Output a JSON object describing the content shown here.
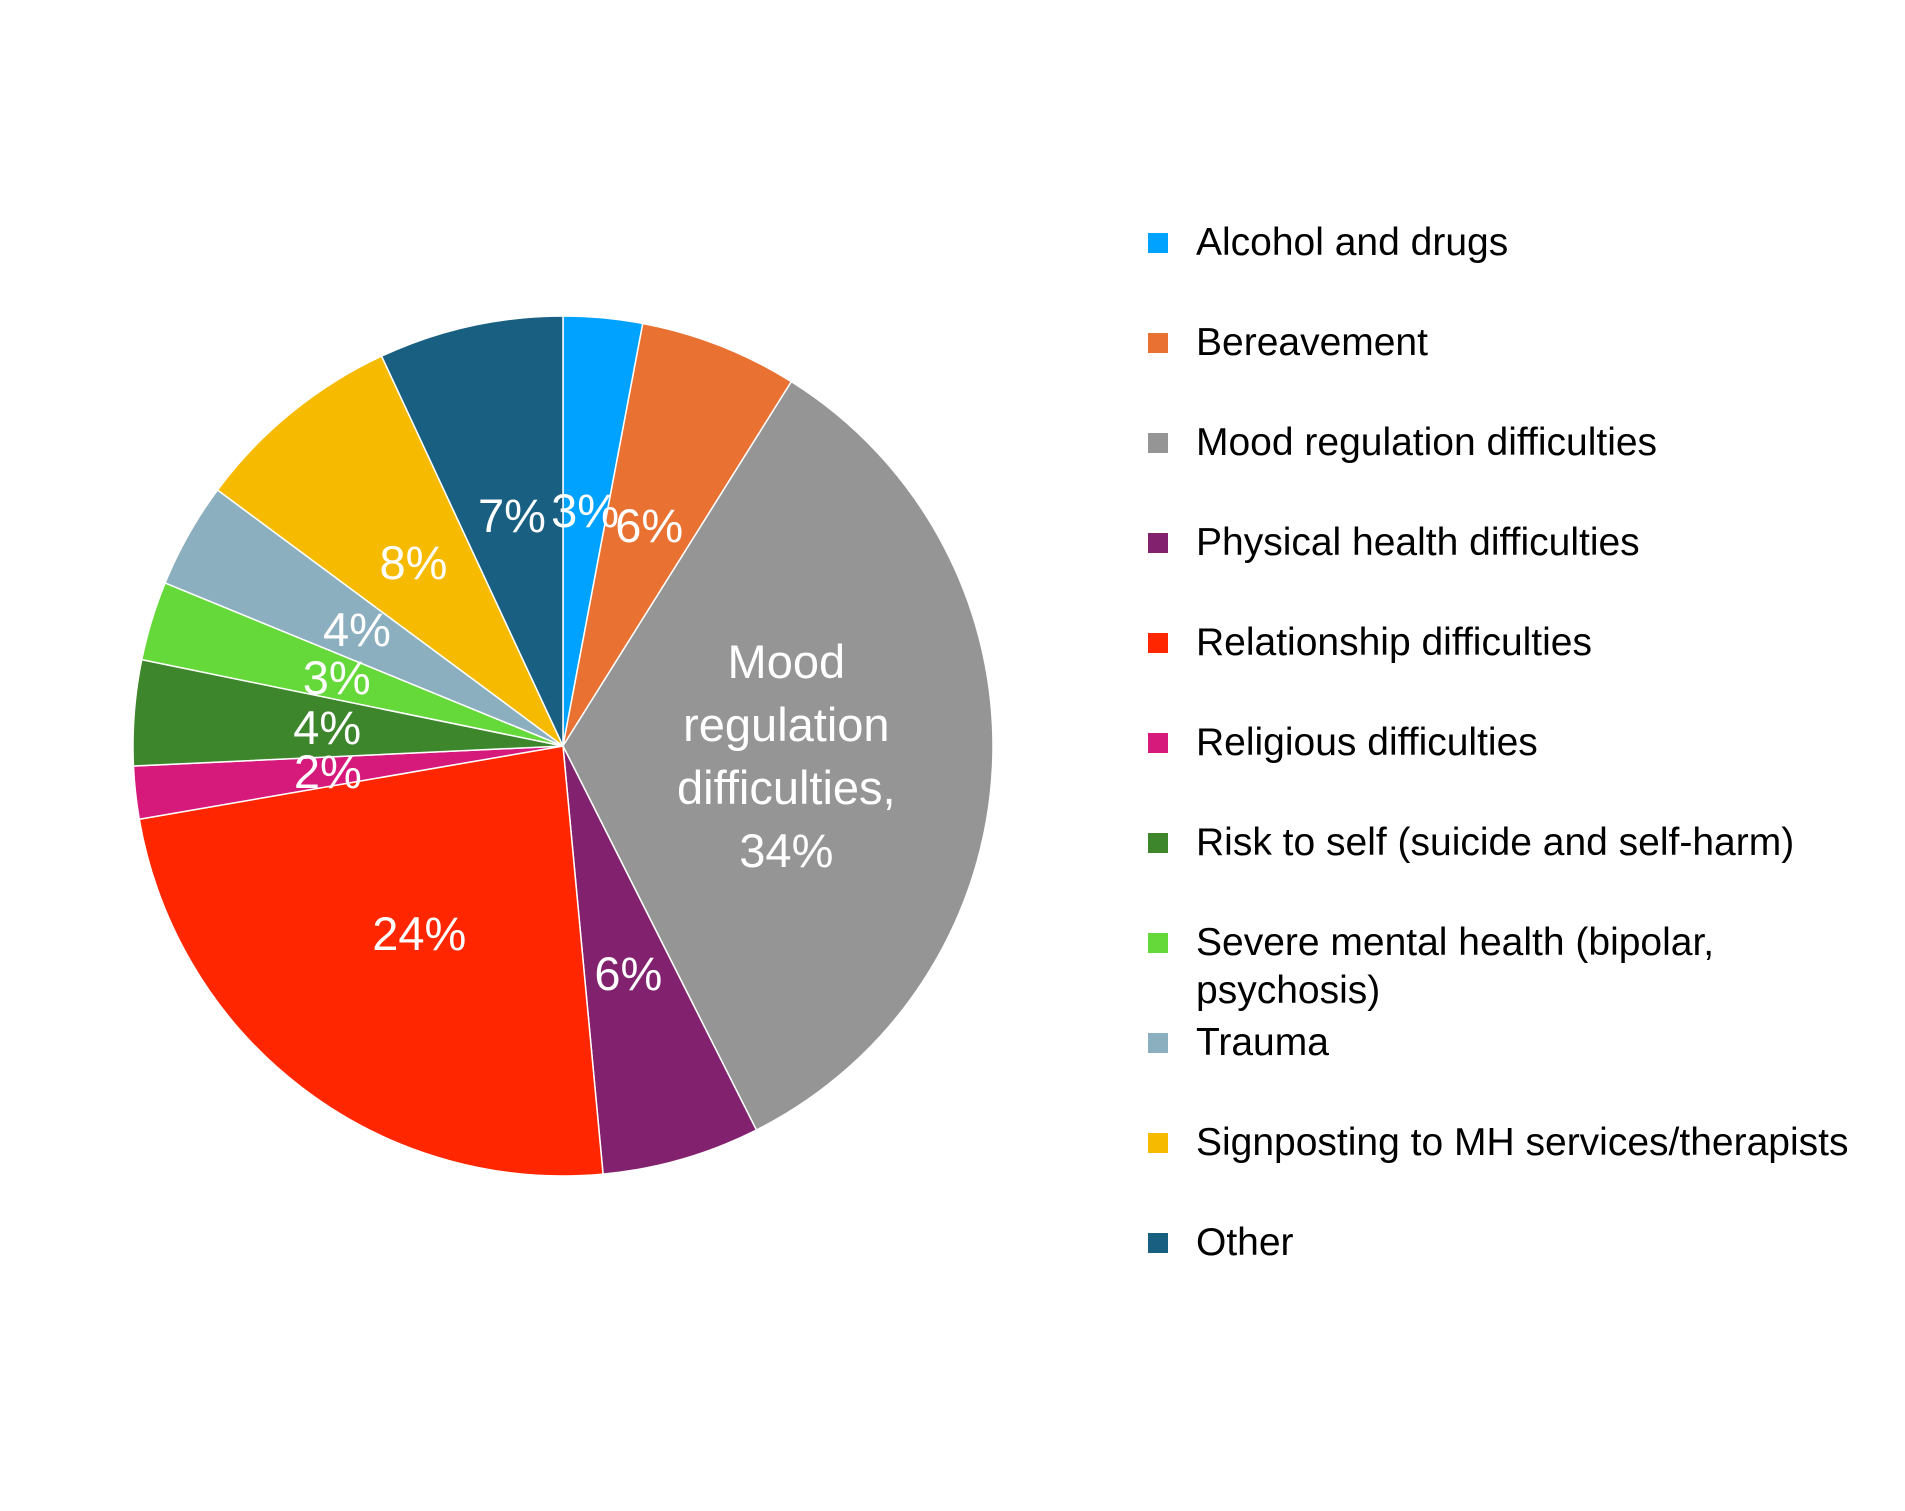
{
  "chart_data": {
    "type": "pie",
    "categories": [
      "Alcohol and drugs",
      "Bereavement",
      "Mood regulation difficulties",
      "Physical health difficulties",
      "Relationship difficulties",
      "Religious difficulties",
      "Risk to self (suicide and self-harm)",
      "Severe mental health (bipolar, psychosis)",
      "Trauma",
      "Signposting to MH services/therapists",
      "Other"
    ],
    "values": [
      3,
      6,
      34,
      6,
      24,
      2,
      4,
      3,
      4,
      8,
      7
    ],
    "value_labels": [
      "3%",
      "6%",
      "Mood regulation difficulties, 34%",
      "6%",
      "24%",
      "2%",
      "4%",
      "3%",
      "4%",
      "8%",
      "7%"
    ],
    "colors": [
      "#00a2ff",
      "#e97132",
      "#959595",
      "#82226f",
      "#ff2600",
      "#d61a7b",
      "#3d862b",
      "#65d83a",
      "#8cafbf",
      "#f6ba00",
      "#185f82"
    ],
    "legend": "right"
  }
}
